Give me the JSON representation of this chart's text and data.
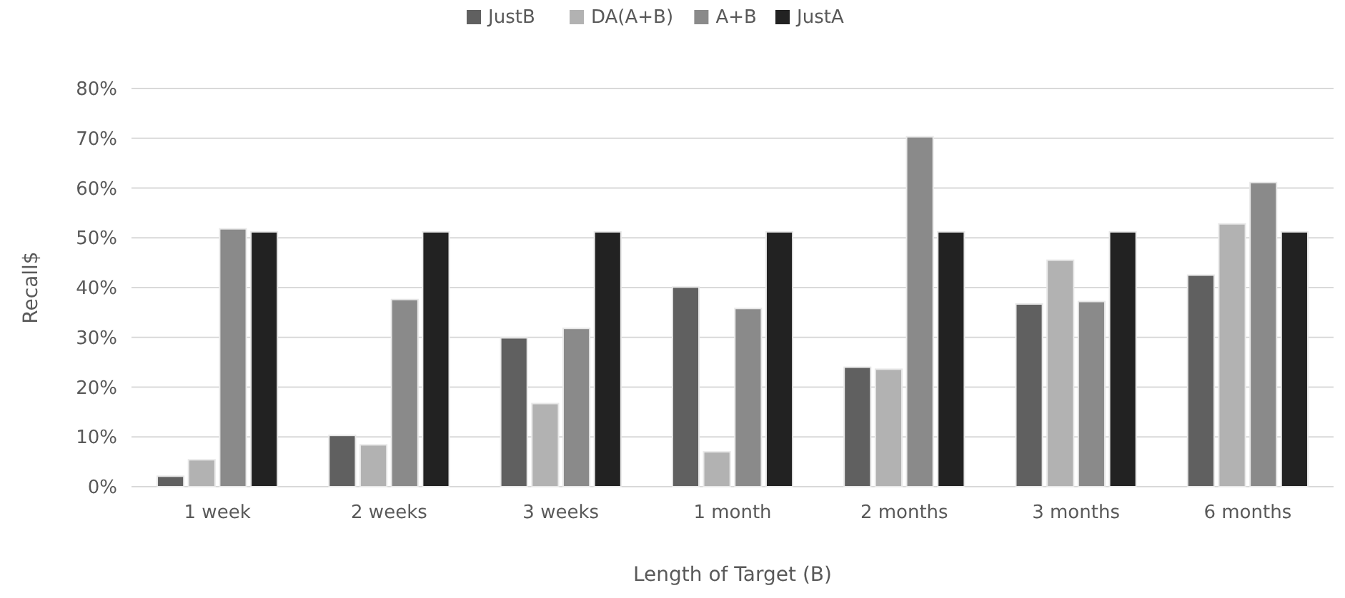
{
  "chart_data": {
    "type": "bar",
    "xlabel": "Length of Target (B)",
    "ylabel": "Recall$",
    "categories": [
      "1 week",
      "2 weeks",
      "3 weeks",
      "1 month",
      "2 months",
      "3 months",
      "6 months"
    ],
    "series": [
      {
        "name": "JustB",
        "color": "#606060",
        "values": [
          2.1,
          10.3,
          29.9,
          40.1,
          24.0,
          36.7,
          42.5
        ]
      },
      {
        "name": "DA(A+B)",
        "color": "#b2b2b2",
        "values": [
          5.4,
          8.4,
          16.7,
          7.0,
          23.6,
          45.5,
          52.8
        ]
      },
      {
        "name": "A+B",
        "color": "#8a8a8a",
        "values": [
          51.8,
          37.6,
          31.8,
          35.8,
          70.3,
          37.2,
          61.1
        ]
      },
      {
        "name": "JustA",
        "color": "#222222",
        "values": [
          51.2,
          51.2,
          51.2,
          51.2,
          51.2,
          51.2,
          51.2
        ]
      }
    ],
    "ylim": [
      0,
      80
    ],
    "yticks": [
      {
        "value": 0,
        "label": "0%"
      },
      {
        "value": 10,
        "label": "10%"
      },
      {
        "value": 20,
        "label": "20%"
      },
      {
        "value": 30,
        "label": "30%"
      },
      {
        "value": 40,
        "label": "40%"
      },
      {
        "value": 50,
        "label": "50%"
      },
      {
        "value": 60,
        "label": "60%"
      },
      {
        "value": 70,
        "label": "70%"
      },
      {
        "value": 80,
        "label": "80%"
      }
    ],
    "grid": "y",
    "legend": "top"
  }
}
